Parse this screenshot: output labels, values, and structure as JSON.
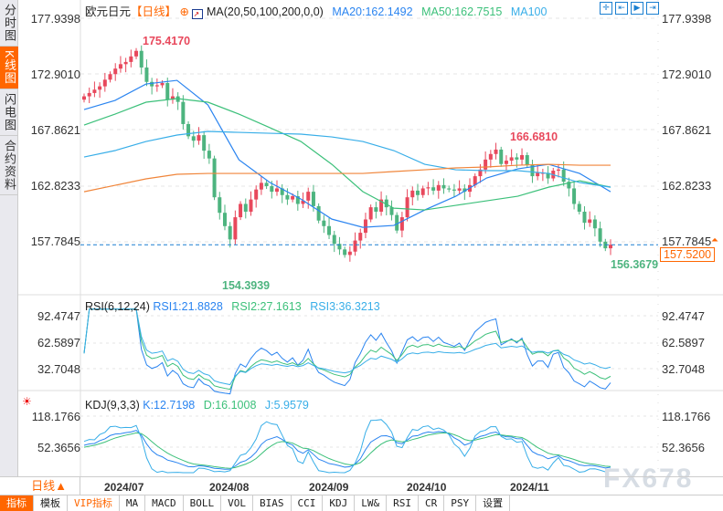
{
  "sidebar": {
    "tabs": [
      "分时图",
      "K线图",
      "闪电图",
      "合约资料"
    ],
    "active": 1
  },
  "header": {
    "symbol": "欧元日元",
    "period_tag": "【日线】",
    "ma_label": "MA(20,50,100,200,0,0)",
    "ma20": "MA20:162.1492",
    "ma50": "MA50:162.7515",
    "ma100": "MA100"
  },
  "rsi_header": {
    "label": "RSI(6,12,24)",
    "rsi1": "RSI1:21.8828",
    "rsi2": "RSI2:27.1613",
    "rsi3": "RSI3:36.3213"
  },
  "kdj_header": {
    "label": "KDJ(9,3,3)",
    "k": "K:12.7198",
    "d": "D:16.1008",
    "j": "J:5.9579"
  },
  "colors": {
    "up": "#e8485c",
    "down": "#4db47f",
    "ma20": "#2a84f0",
    "ma50": "#3cc07a",
    "ma100": "#38aee8",
    "ma200": "#f0853a",
    "accent": "#ff6600"
  },
  "price_axis": [
    "177.9398",
    "172.9010",
    "167.8621",
    "162.8233",
    "157.7845"
  ],
  "rsi_axis": [
    "92.4747",
    "62.5897",
    "32.7048"
  ],
  "kdj_axis": [
    "118.1766",
    "52.3656"
  ],
  "current_price": "157.5200",
  "annotations": {
    "high": "175.4170",
    "low": "154.3939",
    "local_high": "166.6810",
    "recent_low": "156.3679"
  },
  "dates": [
    "2024/07",
    "2024/08",
    "2024/09",
    "2024/10",
    "2024/11"
  ],
  "period_button": "日线▲",
  "toolbar": [
    "指标",
    "模板",
    "VIP指标",
    "MA",
    "MACD",
    "BOLL",
    "VOL",
    "BIAS",
    "CCI",
    "KDJ",
    "LW&",
    "RSI",
    "CR",
    "PSY",
    "设置"
  ],
  "watermark": "FX678",
  "chart_data": {
    "type": "candlestick",
    "price_range": [
      153.5,
      178.6
    ],
    "closes": [
      170.9,
      171.2,
      171.5,
      171.8,
      172.4,
      172.9,
      173.4,
      173.8,
      174.0,
      174.5,
      175.0,
      173.5,
      172.2,
      171.8,
      171.9,
      172.1,
      170.6,
      170.9,
      170.4,
      168.4,
      167.3,
      166.9,
      167.4,
      166.0,
      165.3,
      161.8,
      160.4,
      159.2,
      158.0,
      160.0,
      161.2,
      160.5,
      161.6,
      162.5,
      163.1,
      162.8,
      162.3,
      162.6,
      162.0,
      161.6,
      161.9,
      161.2,
      161.5,
      162.3,
      161.0,
      159.7,
      159.2,
      158.4,
      157.6,
      157.1,
      156.6,
      156.9,
      157.9,
      158.6,
      159.8,
      160.9,
      160.5,
      161.6,
      160.9,
      160.2,
      158.8,
      160.0,
      161.8,
      162.4,
      162.0,
      162.6,
      162.7,
      162.4,
      162.9,
      162.6,
      162.5,
      162.4,
      162.6,
      162.3,
      162.9,
      163.7,
      164.3,
      165.2,
      165.7,
      166.1,
      164.8,
      165.1,
      165.4,
      165.2,
      165.6,
      164.7,
      163.7,
      164.0,
      164.0,
      163.5,
      164.2,
      164.3,
      163.2,
      162.6,
      161.2,
      160.5,
      159.5,
      159.8,
      159.0,
      157.8,
      157.2,
      157.52
    ],
    "ma": {
      "ma20": [
        169.71,
        170.53,
        172.01,
        172.34,
        170.12,
        165.18,
        163.13,
        161.64,
        159.83,
        159.09,
        159.26,
        160.66,
        161.89,
        163.54,
        164.36,
        164.77,
        163.95,
        162.3
      ],
      "ma50": [
        168.31,
        169.3,
        170.37,
        170.7,
        170.37,
        169.3,
        168.07,
        166.83,
        164.77,
        162.31,
        160.82,
        160.66,
        161.07,
        161.48,
        161.89,
        162.71,
        163.29,
        162.71
      ],
      "ma100": [
        165.43,
        166.01,
        166.83,
        167.41,
        167.74,
        167.65,
        167.57,
        167.49,
        167.24,
        166.83,
        166.01,
        164.77,
        164.28,
        164.2,
        164.2,
        163.95,
        163.13,
        162.71
      ],
      "ma200": [
        162.3,
        162.88,
        163.46,
        163.87,
        163.95,
        163.95,
        163.95,
        163.95,
        163.95,
        163.95,
        164.12,
        164.28,
        164.45,
        164.53,
        164.69,
        164.77,
        164.69,
        164.69
      ]
    }
  }
}
